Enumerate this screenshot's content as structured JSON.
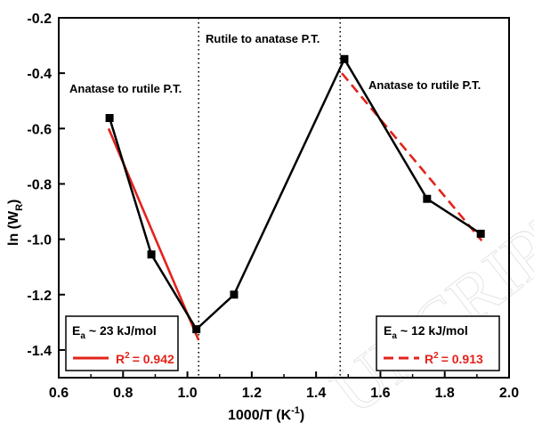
{
  "chart_data": {
    "type": "line",
    "xlabel": "1000/T (K",
    "xlabel_sup": "-1",
    "xlabel_close": ")",
    "ylabel": "ln (W",
    "ylabel_sub": "R",
    "ylabel_close": ")",
    "xlim": [
      0.6,
      2.0
    ],
    "ylim": [
      -1.5,
      -0.2
    ],
    "x_ticks": [
      0.6,
      0.8,
      1.0,
      1.2,
      1.4,
      1.6,
      1.8,
      2.0
    ],
    "x_tick_labels": [
      "0.6",
      "0.8",
      "1.0",
      "1.2",
      "1.4",
      "1.6",
      "1.8",
      "2.0"
    ],
    "y_ticks": [
      -1.4,
      -1.2,
      -1.0,
      -0.8,
      -0.6,
      -0.4,
      -0.2
    ],
    "y_tick_labels": [
      "-1.4",
      "-1.2",
      "-1.0",
      "-0.8",
      "-0.6",
      "-0.4",
      "-0.2"
    ],
    "series": [
      {
        "x": [
          0.758,
          0.888,
          1.028,
          1.145,
          1.488,
          1.745,
          1.912
        ],
        "y": [
          -0.562,
          -1.055,
          -1.325,
          -1.2,
          -0.349,
          -0.854,
          -0.98
        ],
        "color": "#000000",
        "marker": "square"
      }
    ],
    "fits": [
      {
        "x": [
          0.755,
          1.035
        ],
        "y": [
          -0.6,
          -1.365
        ],
        "color": "#e3231b",
        "style": "solid"
      },
      {
        "x": [
          1.48,
          1.915
        ],
        "y": [
          -0.4,
          -1.005
        ],
        "color": "#e3231b",
        "style": "dashed"
      }
    ],
    "vlines": [
      1.035,
      1.475
    ],
    "annotations": {
      "left_region": "Anatase to rutile P.T.",
      "middle_region": "Rutile to anatase P.T.",
      "right_region": "Anatase to rutile P.T."
    },
    "legend_boxes": [
      {
        "ea_prefix": "E",
        "ea_sub": "a",
        "ea_value": "~ 23 kJ/mol",
        "r2_text": "R",
        "r2_sup": "2",
        "r2_value": "= 0.942",
        "line_style": "solid"
      },
      {
        "ea_prefix": "E",
        "ea_sub": "a",
        "ea_value": "~ 12 kJ/mol",
        "r2_text": "R",
        "r2_sup": "2",
        "r2_value": "= 0.913",
        "line_style": "dashed"
      }
    ],
    "grid": false,
    "accent_color": "#e3231b"
  }
}
